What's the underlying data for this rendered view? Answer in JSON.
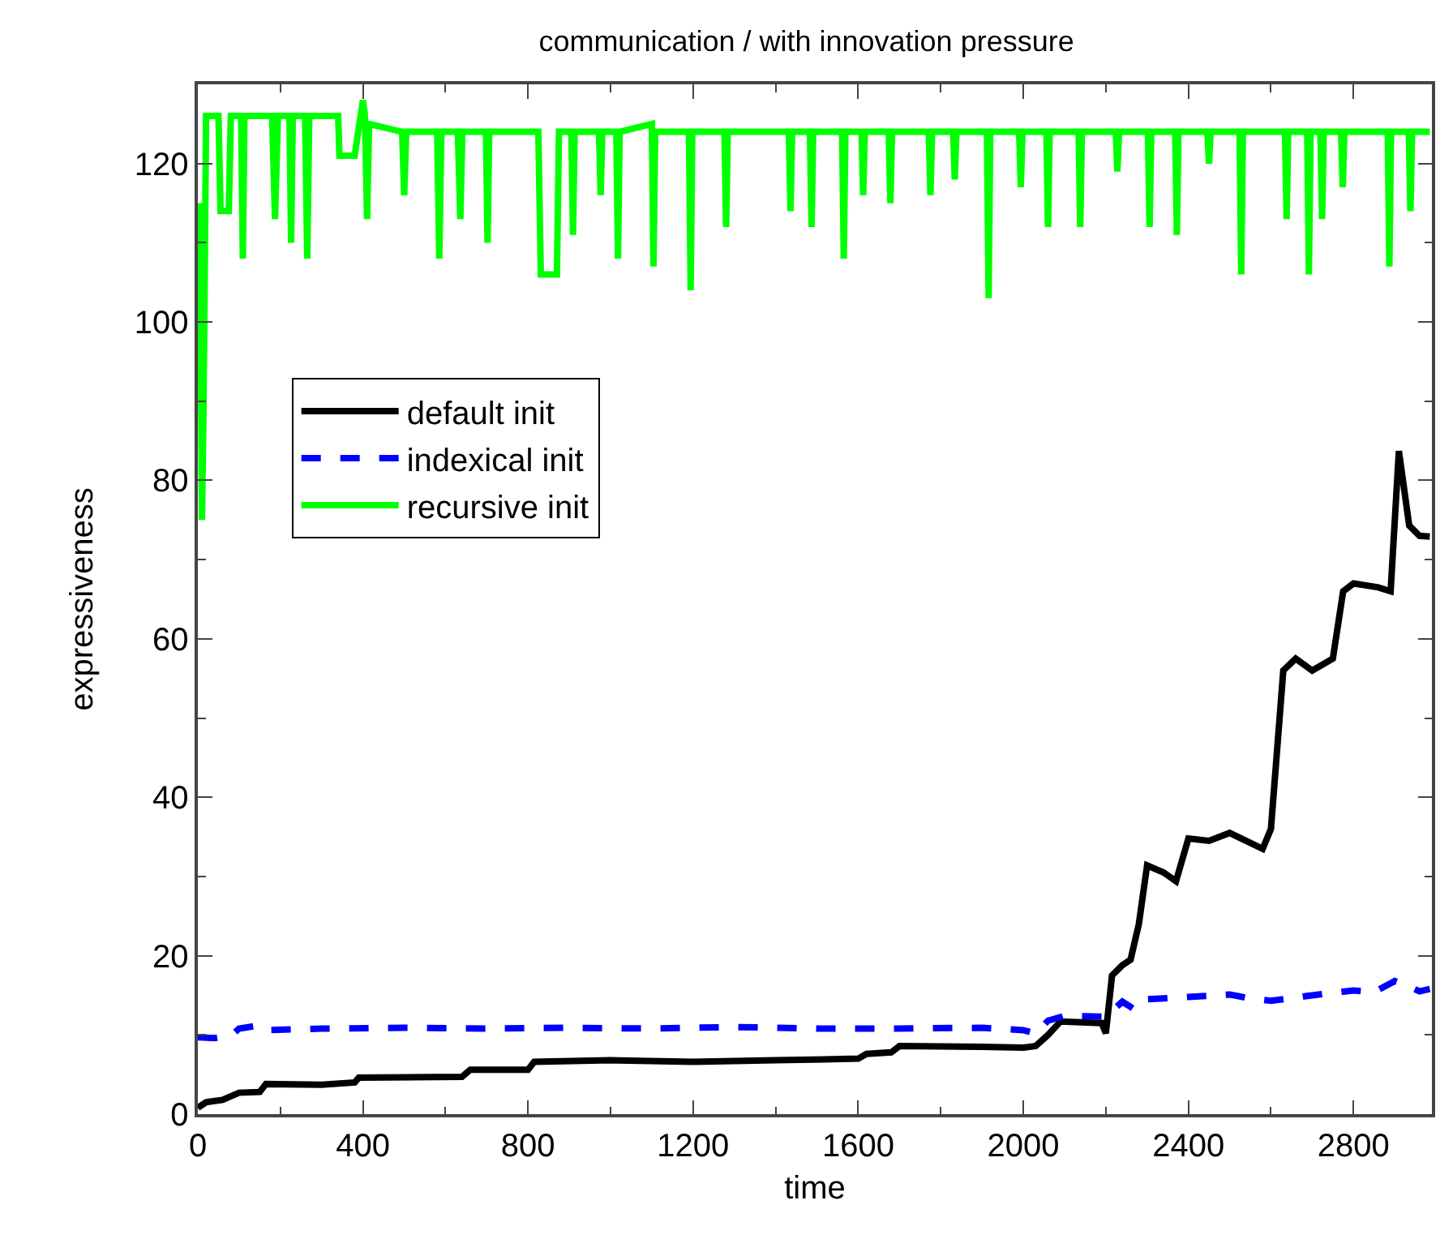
{
  "chart_data": {
    "type": "line",
    "title": "communication / with innovation pressure",
    "xlabel": "time",
    "ylabel": "expressiveness",
    "xlim": [
      0,
      2990
    ],
    "ylim": [
      0,
      130
    ],
    "xticks": [
      0,
      {
        "value": 200,
        "label": null
      },
      400,
      {
        "value": 600,
        "label": null
      },
      800,
      {
        "value": 1000,
        "label": null
      },
      1200,
      {
        "value": 1400,
        "label": null
      },
      1600,
      {
        "value": 1800,
        "label": null
      },
      2000,
      {
        "value": 2200,
        "label": null
      },
      2400,
      {
        "value": 2600,
        "label": null
      },
      2800
    ],
    "yticks": [
      0,
      {
        "value": 10,
        "label": null
      },
      20,
      {
        "value": 30,
        "label": null
      },
      40,
      {
        "value": 50,
        "label": null
      },
      60,
      {
        "value": 70,
        "label": null
      },
      80,
      {
        "value": 90,
        "label": null
      },
      100,
      {
        "value": 110,
        "label": null
      },
      120
    ],
    "grid": false,
    "legend": "top left",
    "marker": "none",
    "series": [
      {
        "name": "default init",
        "color": "#000000",
        "line_style": "solid",
        "x": [
          0,
          20,
          60,
          100,
          150,
          165,
          300,
          380,
          390,
          640,
          660,
          800,
          815,
          1000,
          1200,
          1400,
          1600,
          1620,
          1680,
          1700,
          1900,
          2000,
          2030,
          2060,
          2090,
          2190,
          2200,
          2215,
          2240,
          2260,
          2280,
          2300,
          2340,
          2370,
          2400,
          2450,
          2500,
          2580,
          2600,
          2630,
          2660,
          2700,
          2750,
          2775,
          2800,
          2860,
          2890,
          2910,
          2935,
          2960,
          2985
        ],
        "values": [
          0.8,
          1.5,
          1.8,
          2.7,
          2.8,
          3.8,
          3.7,
          4.0,
          4.6,
          4.7,
          5.6,
          5.6,
          6.6,
          6.8,
          6.6,
          6.8,
          7.0,
          7.6,
          7.8,
          8.6,
          8.5,
          8.4,
          8.6,
          10,
          11.7,
          11.5,
          10.2,
          17.5,
          18.8,
          19.5,
          24,
          31.4,
          30.5,
          29.4,
          34.8,
          34.5,
          35.5,
          33.5,
          36,
          56,
          57.5,
          56,
          57.5,
          66,
          67,
          66.5,
          66,
          83.7,
          74.3,
          73,
          72.9
        ]
      },
      {
        "name": "indexical init",
        "color": "#0000ff",
        "line_style": "dashed",
        "x": [
          0,
          40,
          80,
          100,
          150,
          170,
          300,
          500,
          700,
          900,
          1100,
          1300,
          1500,
          1700,
          1900,
          2000,
          2030,
          2060,
          2100,
          2200,
          2240,
          2270,
          2300,
          2400,
          2500,
          2550,
          2600,
          2700,
          2800,
          2850,
          2900,
          2930,
          2960,
          2985
        ],
        "values": [
          9.7,
          9.6,
          9.9,
          10.8,
          11.2,
          10.6,
          10.8,
          10.9,
          10.8,
          10.9,
          10.8,
          11.0,
          10.8,
          10.8,
          10.9,
          10.6,
          10.2,
          11.8,
          12.4,
          12.3,
          14.2,
          13.2,
          14.5,
          14.8,
          15.1,
          14.6,
          14.3,
          15.0,
          15.6,
          15.4,
          16.8,
          16.2,
          15.5,
          15.8
        ]
      },
      {
        "name": "recursive init",
        "color": "#00ff00",
        "line_style": "solid",
        "x": [
          0,
          5,
          10,
          14,
          20,
          50,
          55,
          75,
          80,
          105,
          109,
          113,
          180,
          187,
          194,
          222,
          226,
          230,
          260,
          265,
          270,
          340,
          343,
          380,
          400,
          405,
          410,
          415,
          495,
          500,
          505,
          580,
          585,
          590,
          630,
          636,
          641,
          698,
          702,
          706,
          825,
          831,
          870,
          875,
          905,
          909,
          913,
          972,
          976,
          980,
          1014,
          1018,
          1022,
          1100,
          1104,
          1108,
          1190,
          1194,
          1198,
          1276,
          1280,
          1284,
          1432,
          1436,
          1440,
          1483,
          1487,
          1491,
          1561,
          1565,
          1569,
          1608,
          1612,
          1616,
          1674,
          1678,
          1682,
          1771,
          1775,
          1779,
          1830,
          1834,
          1838,
          1912,
          1916,
          1920,
          1990,
          1994,
          1998,
          2056,
          2060,
          2064,
          2134,
          2138,
          2142,
          2224,
          2228,
          2232,
          2302,
          2306,
          2310,
          2368,
          2372,
          2376,
          2446,
          2450,
          2454,
          2524,
          2528,
          2532,
          2634,
          2638,
          2642,
          2688,
          2692,
          2696,
          2720,
          2724,
          2728,
          2770,
          2774,
          2778,
          2883,
          2887,
          2891,
          2934,
          2938,
          2942,
          2985
        ],
        "values": [
          95,
          115,
          75,
          90,
          126,
          126,
          114,
          114,
          126,
          126,
          108,
          126,
          126,
          113,
          126,
          126,
          110,
          126,
          126,
          108,
          126,
          126,
          121,
          121,
          128,
          126,
          113,
          125,
          124,
          116,
          124,
          124,
          108,
          124,
          124,
          113,
          124,
          124,
          110,
          124,
          124,
          106,
          106,
          124,
          124,
          111,
          124,
          124,
          116,
          124,
          124,
          108,
          124,
          125,
          107,
          124,
          124,
          104,
          124,
          124,
          112,
          124,
          124,
          114,
          124,
          124,
          112,
          124,
          124,
          108,
          124,
          124,
          116,
          124,
          124,
          115,
          124,
          124,
          116,
          124,
          124,
          118,
          124,
          124,
          103,
          124,
          124,
          117,
          124,
          124,
          112,
          124,
          124,
          112,
          124,
          124,
          119,
          124,
          124,
          112,
          124,
          124,
          111,
          124,
          124,
          120,
          124,
          124,
          106,
          124,
          124,
          113,
          124,
          124,
          106,
          124,
          124,
          113,
          124,
          124,
          117,
          124,
          124,
          107,
          124,
          124,
          114,
          124,
          124
        ]
      }
    ]
  }
}
